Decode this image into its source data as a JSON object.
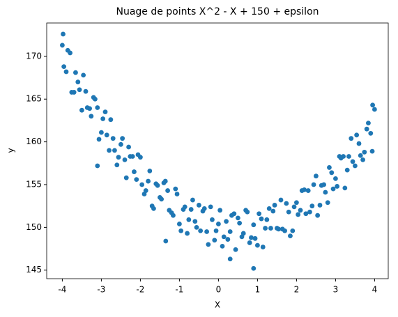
{
  "chart_data": {
    "type": "scatter",
    "title": "Nuage de points X^2 - X + 150 + epsilon",
    "x_label": "X",
    "y_label": "y",
    "color": "#1f77b4",
    "xlim": [
      -4.4,
      4.35
    ],
    "ylim": [
      144,
      173.9
    ],
    "xticks": [
      -4,
      -3,
      -2,
      -1,
      0,
      1,
      2,
      3,
      4
    ],
    "yticks": [
      145,
      150,
      155,
      160,
      165,
      170
    ],
    "x": [
      -4.0,
      -3.9,
      -3.8,
      -3.7,
      -3.6,
      -3.5,
      -3.4,
      -3.3,
      -3.2,
      -3.1,
      -3.0,
      -2.9,
      -2.8,
      -2.7,
      -2.6,
      -2.5,
      -2.4,
      -2.3,
      -2.2,
      -2.1,
      -2.0,
      -1.9,
      -1.8,
      -1.7,
      -1.6,
      -1.5,
      -1.4,
      -1.3,
      -1.2,
      -1.1,
      -1.0,
      -0.9,
      -0.8,
      -0.7,
      -0.6,
      -0.5,
      -0.4,
      -0.3,
      -0.2,
      -0.1,
      0,
      0.1,
      0.2,
      0.3,
      0.4,
      0.5,
      0.6,
      0.7,
      0.8,
      0.9,
      1.0,
      1.1,
      1.2,
      1.3,
      1.4,
      1.5,
      1.6,
      1.7,
      1.8,
      1.9,
      2.0,
      2.1,
      2.2,
      2.3,
      2.4,
      2.5,
      2.6,
      2.7,
      2.8,
      2.9,
      3.0,
      3.1,
      3.2,
      3.3,
      3.4,
      3.5,
      3.6,
      3.7,
      3.8,
      3.9,
      4.0,
      -3.96,
      -3.86,
      -3.76,
      -3.66,
      -3.56,
      -3.46,
      -3.36,
      -3.26,
      -3.16,
      -3.06,
      -2.96,
      -2.86,
      -2.76,
      -2.66,
      -2.56,
      -2.46,
      -2.36,
      -2.26,
      -2.16,
      -2.06,
      -1.96,
      -1.86,
      -1.76,
      -1.66,
      -1.56,
      -1.46,
      -1.36,
      -1.26,
      -1.16,
      -1.06,
      -0.96,
      -0.86,
      -0.76,
      -0.66,
      -0.56,
      -0.46,
      -0.36,
      -0.26,
      -0.16,
      -0.06,
      0.04,
      0.14,
      0.24,
      0.34,
      0.44,
      0.54,
      0.64,
      0.74,
      0.84,
      0.94,
      1.04,
      1.14,
      1.24,
      1.34,
      1.44,
      1.54,
      1.64,
      1.74,
      1.84,
      1.94,
      2.04,
      2.14,
      2.24,
      2.34,
      2.44,
      2.54,
      2.64,
      2.74,
      2.84,
      2.94,
      3.04,
      3.14,
      3.24,
      3.34,
      3.44,
      3.54,
      3.64,
      3.74,
      3.84,
      3.94,
      0.9,
      -3.1,
      -3.98,
      3.95,
      -1.35,
      0.3
    ],
    "y": [
      171.3,
      168.2,
      170.4,
      165.8,
      167.0,
      163.7,
      165.9,
      163.9,
      165.2,
      164.0,
      161.1,
      163.5,
      159.0,
      160.4,
      157.3,
      159.7,
      157.9,
      159.4,
      158.3,
      155.6,
      158.2,
      153.9,
      155.4,
      152.5,
      155.1,
      153.5,
      155.2,
      154.3,
      151.7,
      154.5,
      150.4,
      152.1,
      149.3,
      152.1,
      150.7,
      152.6,
      151.9,
      149.5,
      152.4,
      148.5,
      150.4,
      147.8,
      150.7,
      149.5,
      151.6,
      151.1,
      148.9,
      152.0,
      148.2,
      150.3,
      147.9,
      151.0,
      149.9,
      152.2,
      151.9,
      149.9,
      153.2,
      149.6,
      151.8,
      149.6,
      152.9,
      152.0,
      154.4,
      154.3,
      152.5,
      156.0,
      152.6,
      155.0,
      152.9,
      156.4,
      155.7,
      158.3,
      158.3,
      156.7,
      160.4,
      157.2,
      159.8,
      157.9,
      161.5,
      161.0,
      163.8,
      168.8,
      170.7,
      165.8,
      168.1,
      166.1,
      167.8,
      164.0,
      163.0,
      165.0,
      160.3,
      162.7,
      160.8,
      162.6,
      159.0,
      158.2,
      160.4,
      155.8,
      158.3,
      156.5,
      158.5,
      155.0,
      154.3,
      156.6,
      152.2,
      154.9,
      153.3,
      155.4,
      152.0,
      151.4,
      153.9,
      149.6,
      152.4,
      150.9,
      153.2,
      150.0,
      149.6,
      152.2,
      148.0,
      150.9,
      149.6,
      152.0,
      148.9,
      148.6,
      151.4,
      147.4,
      150.5,
      149.3,
      151.8,
      148.8,
      148.7,
      151.6,
      147.7,
      150.9,
      149.9,
      152.6,
      149.8,
      149.8,
      152.8,
      149.0,
      152.4,
      151.5,
      154.3,
      151.6,
      151.8,
      155.0,
      151.4,
      154.9,
      154.1,
      157.0,
      154.5,
      154.8,
      158.1,
      154.6,
      158.3,
      157.7,
      160.8,
      158.4,
      158.8,
      162.2,
      158.9,
      145.2,
      157.2,
      172.6,
      164.3,
      148.4,
      146.3
    ]
  }
}
